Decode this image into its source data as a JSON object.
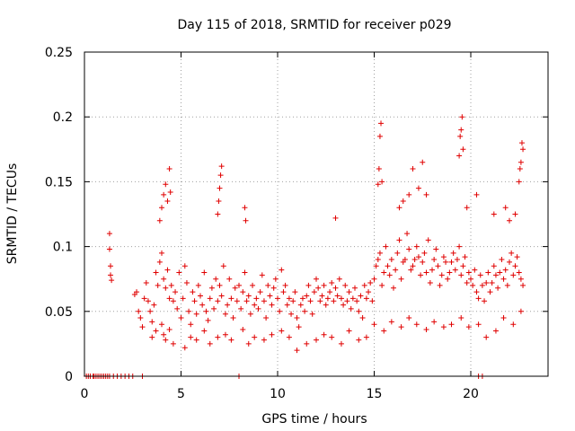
{
  "chart_data": {
    "type": "scatter",
    "title": "Day 115 of 2018, SRMTID for receiver p029",
    "xlabel": "GPS time / hours",
    "ylabel": "SRMTID / TECUs",
    "xlim": [
      0,
      24
    ],
    "ylim": [
      0,
      0.25
    ],
    "xticks": [
      0,
      5,
      10,
      15,
      20
    ],
    "xtick_labels": [
      "0",
      "5",
      "10",
      "15",
      "20"
    ],
    "yticks": [
      0,
      0.05,
      0.1,
      0.15,
      0.2,
      0.25
    ],
    "ytick_labels": [
      "0",
      "0.05",
      "0.1",
      "0.15",
      "0.2",
      "0.25"
    ],
    "grid": true,
    "legend": "none",
    "marker": "+",
    "series": [
      {
        "name": "SRMTID",
        "color": "#e00000",
        "x": [
          0.1,
          0.2,
          0.3,
          0.45,
          0.5,
          0.6,
          0.7,
          0.8,
          0.9,
          1.0,
          1.1,
          1.2,
          1.3,
          1.5,
          1.7,
          1.9,
          2.1,
          2.3,
          2.5,
          3.0,
          8.0,
          20.4,
          20.6,
          1.3,
          1.3,
          1.35,
          1.35,
          1.4,
          2.6,
          2.7,
          2.8,
          2.9,
          3.0,
          3.1,
          3.2,
          3.3,
          3.4,
          3.5,
          3.6,
          3.7,
          3.8,
          3.9,
          4.0,
          4.1,
          4.2,
          4.3,
          4.4,
          4.5,
          4.6,
          4.7,
          4.8,
          4.9,
          5.0,
          5.1,
          5.2,
          5.3,
          5.4,
          5.5,
          5.6,
          5.7,
          5.8,
          5.9,
          6.0,
          6.1,
          6.2,
          6.3,
          6.4,
          6.5,
          6.6,
          6.7,
          6.8,
          6.9,
          7.0,
          7.1,
          7.2,
          7.3,
          7.4,
          7.5,
          7.6,
          7.7,
          7.8,
          7.9,
          8.0,
          8.1,
          8.2,
          8.3,
          8.4,
          8.5,
          8.6,
          8.7,
          8.8,
          8.9,
          9.0,
          9.1,
          9.2,
          9.3,
          9.4,
          9.5,
          9.6,
          9.7,
          9.8,
          9.9,
          10.0,
          10.1,
          10.2,
          10.3,
          10.4,
          10.5,
          10.6,
          10.7,
          10.8,
          10.9,
          11.0,
          11.1,
          11.2,
          11.3,
          11.4,
          11.5,
          11.6,
          11.7,
          11.8,
          11.9,
          12.0,
          12.1,
          12.2,
          12.3,
          12.4,
          12.5,
          12.6,
          12.7,
          12.8,
          12.9,
          13.0,
          13.1,
          13.2,
          13.3,
          13.4,
          13.5,
          13.6,
          13.7,
          13.8,
          13.9,
          14.0,
          14.1,
          14.2,
          14.3,
          14.4,
          14.5,
          14.6,
          14.7,
          14.8,
          14.9,
          15.0,
          15.1,
          15.2,
          15.3,
          15.4,
          15.5,
          15.6,
          15.7,
          15.8,
          15.9,
          16.0,
          16.1,
          16.2,
          16.3,
          16.4,
          16.5,
          16.6,
          16.7,
          16.8,
          16.9,
          17.0,
          17.1,
          17.2,
          17.3,
          17.4,
          17.5,
          17.6,
          17.7,
          17.8,
          17.9,
          18.0,
          18.1,
          18.2,
          18.3,
          18.4,
          18.5,
          18.6,
          18.7,
          18.8,
          18.9,
          19.0,
          19.1,
          19.2,
          19.3,
          19.4,
          19.5,
          19.6,
          19.7,
          19.8,
          19.9,
          20.0,
          20.1,
          20.2,
          20.3,
          20.4,
          20.5,
          20.6,
          20.7,
          20.8,
          20.9,
          21.0,
          21.1,
          21.2,
          21.3,
          21.4,
          21.5,
          21.6,
          21.7,
          21.8,
          21.9,
          22.0,
          22.1,
          22.2,
          22.3,
          22.4,
          22.5,
          22.6,
          22.7,
          3.5,
          3.7,
          4.0,
          4.1,
          4.2,
          4.4,
          4.6,
          5.2,
          5.5,
          5.8,
          6.2,
          6.5,
          6.9,
          7.3,
          7.6,
          8.2,
          8.5,
          8.8,
          9.3,
          9.7,
          10.2,
          10.6,
          11.0,
          11.5,
          12.0,
          12.4,
          12.8,
          13.3,
          13.7,
          14.2,
          14.6,
          15.0,
          15.5,
          15.9,
          16.4,
          16.8,
          17.2,
          17.7,
          18.1,
          18.6,
          19.0,
          19.5,
          19.9,
          20.4,
          20.8,
          21.3,
          21.7,
          22.2,
          22.6,
          3.9,
          4.0,
          4.1,
          4.2,
          4.3,
          4.4,
          4.45,
          6.9,
          6.95,
          7.0,
          7.05,
          7.1,
          8.3,
          8.35,
          15.2,
          15.25,
          15.3,
          15.35,
          15.4,
          16.3,
          16.5,
          16.8,
          17.0,
          17.3,
          17.5,
          17.7,
          19.4,
          19.45,
          19.5,
          19.55,
          19.6,
          19.8,
          20.3,
          22.5,
          22.55,
          22.6,
          22.65,
          22.7,
          13.0,
          21.2,
          21.8,
          22.0,
          22.3
        ],
        "y": [
          0,
          0,
          0,
          0,
          0,
          0,
          0,
          0,
          0,
          0,
          0,
          0,
          0,
          0,
          0,
          0,
          0,
          0,
          0,
          0,
          0,
          0,
          0,
          0.11,
          0.098,
          0.085,
          0.078,
          0.074,
          0.063,
          0.065,
          0.05,
          0.045,
          0.038,
          0.06,
          0.072,
          0.058,
          0.05,
          0.042,
          0.055,
          0.08,
          0.07,
          0.088,
          0.095,
          0.075,
          0.068,
          0.082,
          0.06,
          0.07,
          0.058,
          0.065,
          0.052,
          0.08,
          0.045,
          0.06,
          0.085,
          0.072,
          0.05,
          0.04,
          0.065,
          0.058,
          0.048,
          0.07,
          0.062,
          0.055,
          0.08,
          0.05,
          0.043,
          0.06,
          0.068,
          0.052,
          0.075,
          0.058,
          0.07,
          0.062,
          0.085,
          0.048,
          0.055,
          0.075,
          0.06,
          0.045,
          0.068,
          0.058,
          0.07,
          0.052,
          0.065,
          0.08,
          0.058,
          0.062,
          0.048,
          0.07,
          0.055,
          0.06,
          0.052,
          0.065,
          0.078,
          0.058,
          0.045,
          0.07,
          0.062,
          0.055,
          0.068,
          0.075,
          0.06,
          0.05,
          0.082,
          0.065,
          0.07,
          0.055,
          0.06,
          0.048,
          0.058,
          0.065,
          0.045,
          0.038,
          0.055,
          0.06,
          0.05,
          0.062,
          0.07,
          0.058,
          0.048,
          0.065,
          0.075,
          0.068,
          0.058,
          0.062,
          0.07,
          0.055,
          0.06,
          0.065,
          0.072,
          0.058,
          0.068,
          0.062,
          0.075,
          0.06,
          0.055,
          0.07,
          0.058,
          0.065,
          0.052,
          0.06,
          0.068,
          0.058,
          0.05,
          0.062,
          0.045,
          0.07,
          0.06,
          0.065,
          0.072,
          0.058,
          0.075,
          0.085,
          0.09,
          0.095,
          0.07,
          0.08,
          0.1,
          0.085,
          0.078,
          0.09,
          0.068,
          0.082,
          0.095,
          0.105,
          0.075,
          0.088,
          0.09,
          0.11,
          0.098,
          0.082,
          0.085,
          0.09,
          0.1,
          0.092,
          0.078,
          0.088,
          0.095,
          0.08,
          0.105,
          0.072,
          0.082,
          0.09,
          0.098,
          0.085,
          0.07,
          0.078,
          0.092,
          0.088,
          0.075,
          0.08,
          0.088,
          0.095,
          0.082,
          0.09,
          0.1,
          0.078,
          0.085,
          0.092,
          0.072,
          0.08,
          0.075,
          0.07,
          0.082,
          0.065,
          0.06,
          0.078,
          0.07,
          0.058,
          0.072,
          0.08,
          0.065,
          0.072,
          0.085,
          0.078,
          0.068,
          0.08,
          0.09,
          0.075,
          0.082,
          0.07,
          0.088,
          0.095,
          0.078,
          0.085,
          0.092,
          0.08,
          0.075,
          0.07,
          0.03,
          0.035,
          0.04,
          0.032,
          0.028,
          0.036,
          0.025,
          0.022,
          0.03,
          0.028,
          0.035,
          0.025,
          0.03,
          0.032,
          0.028,
          0.036,
          0.025,
          0.03,
          0.028,
          0.032,
          0.035,
          0.03,
          0.02,
          0.025,
          0.028,
          0.032,
          0.03,
          0.025,
          0.035,
          0.028,
          0.03,
          0.04,
          0.035,
          0.042,
          0.038,
          0.045,
          0.04,
          0.036,
          0.042,
          0.038,
          0.04,
          0.045,
          0.038,
          0.04,
          0.03,
          0.035,
          0.045,
          0.04,
          0.05,
          0.12,
          0.13,
          0.14,
          0.148,
          0.135,
          0.16,
          0.142,
          0.125,
          0.135,
          0.145,
          0.155,
          0.162,
          0.13,
          0.12,
          0.148,
          0.16,
          0.185,
          0.195,
          0.15,
          0.13,
          0.135,
          0.14,
          0.16,
          0.145,
          0.165,
          0.14,
          0.17,
          0.185,
          0.19,
          0.2,
          0.175,
          0.13,
          0.14,
          0.15,
          0.16,
          0.165,
          0.18,
          0.175,
          0.122,
          0.125,
          0.13,
          0.12,
          0.125
        ]
      }
    ]
  }
}
